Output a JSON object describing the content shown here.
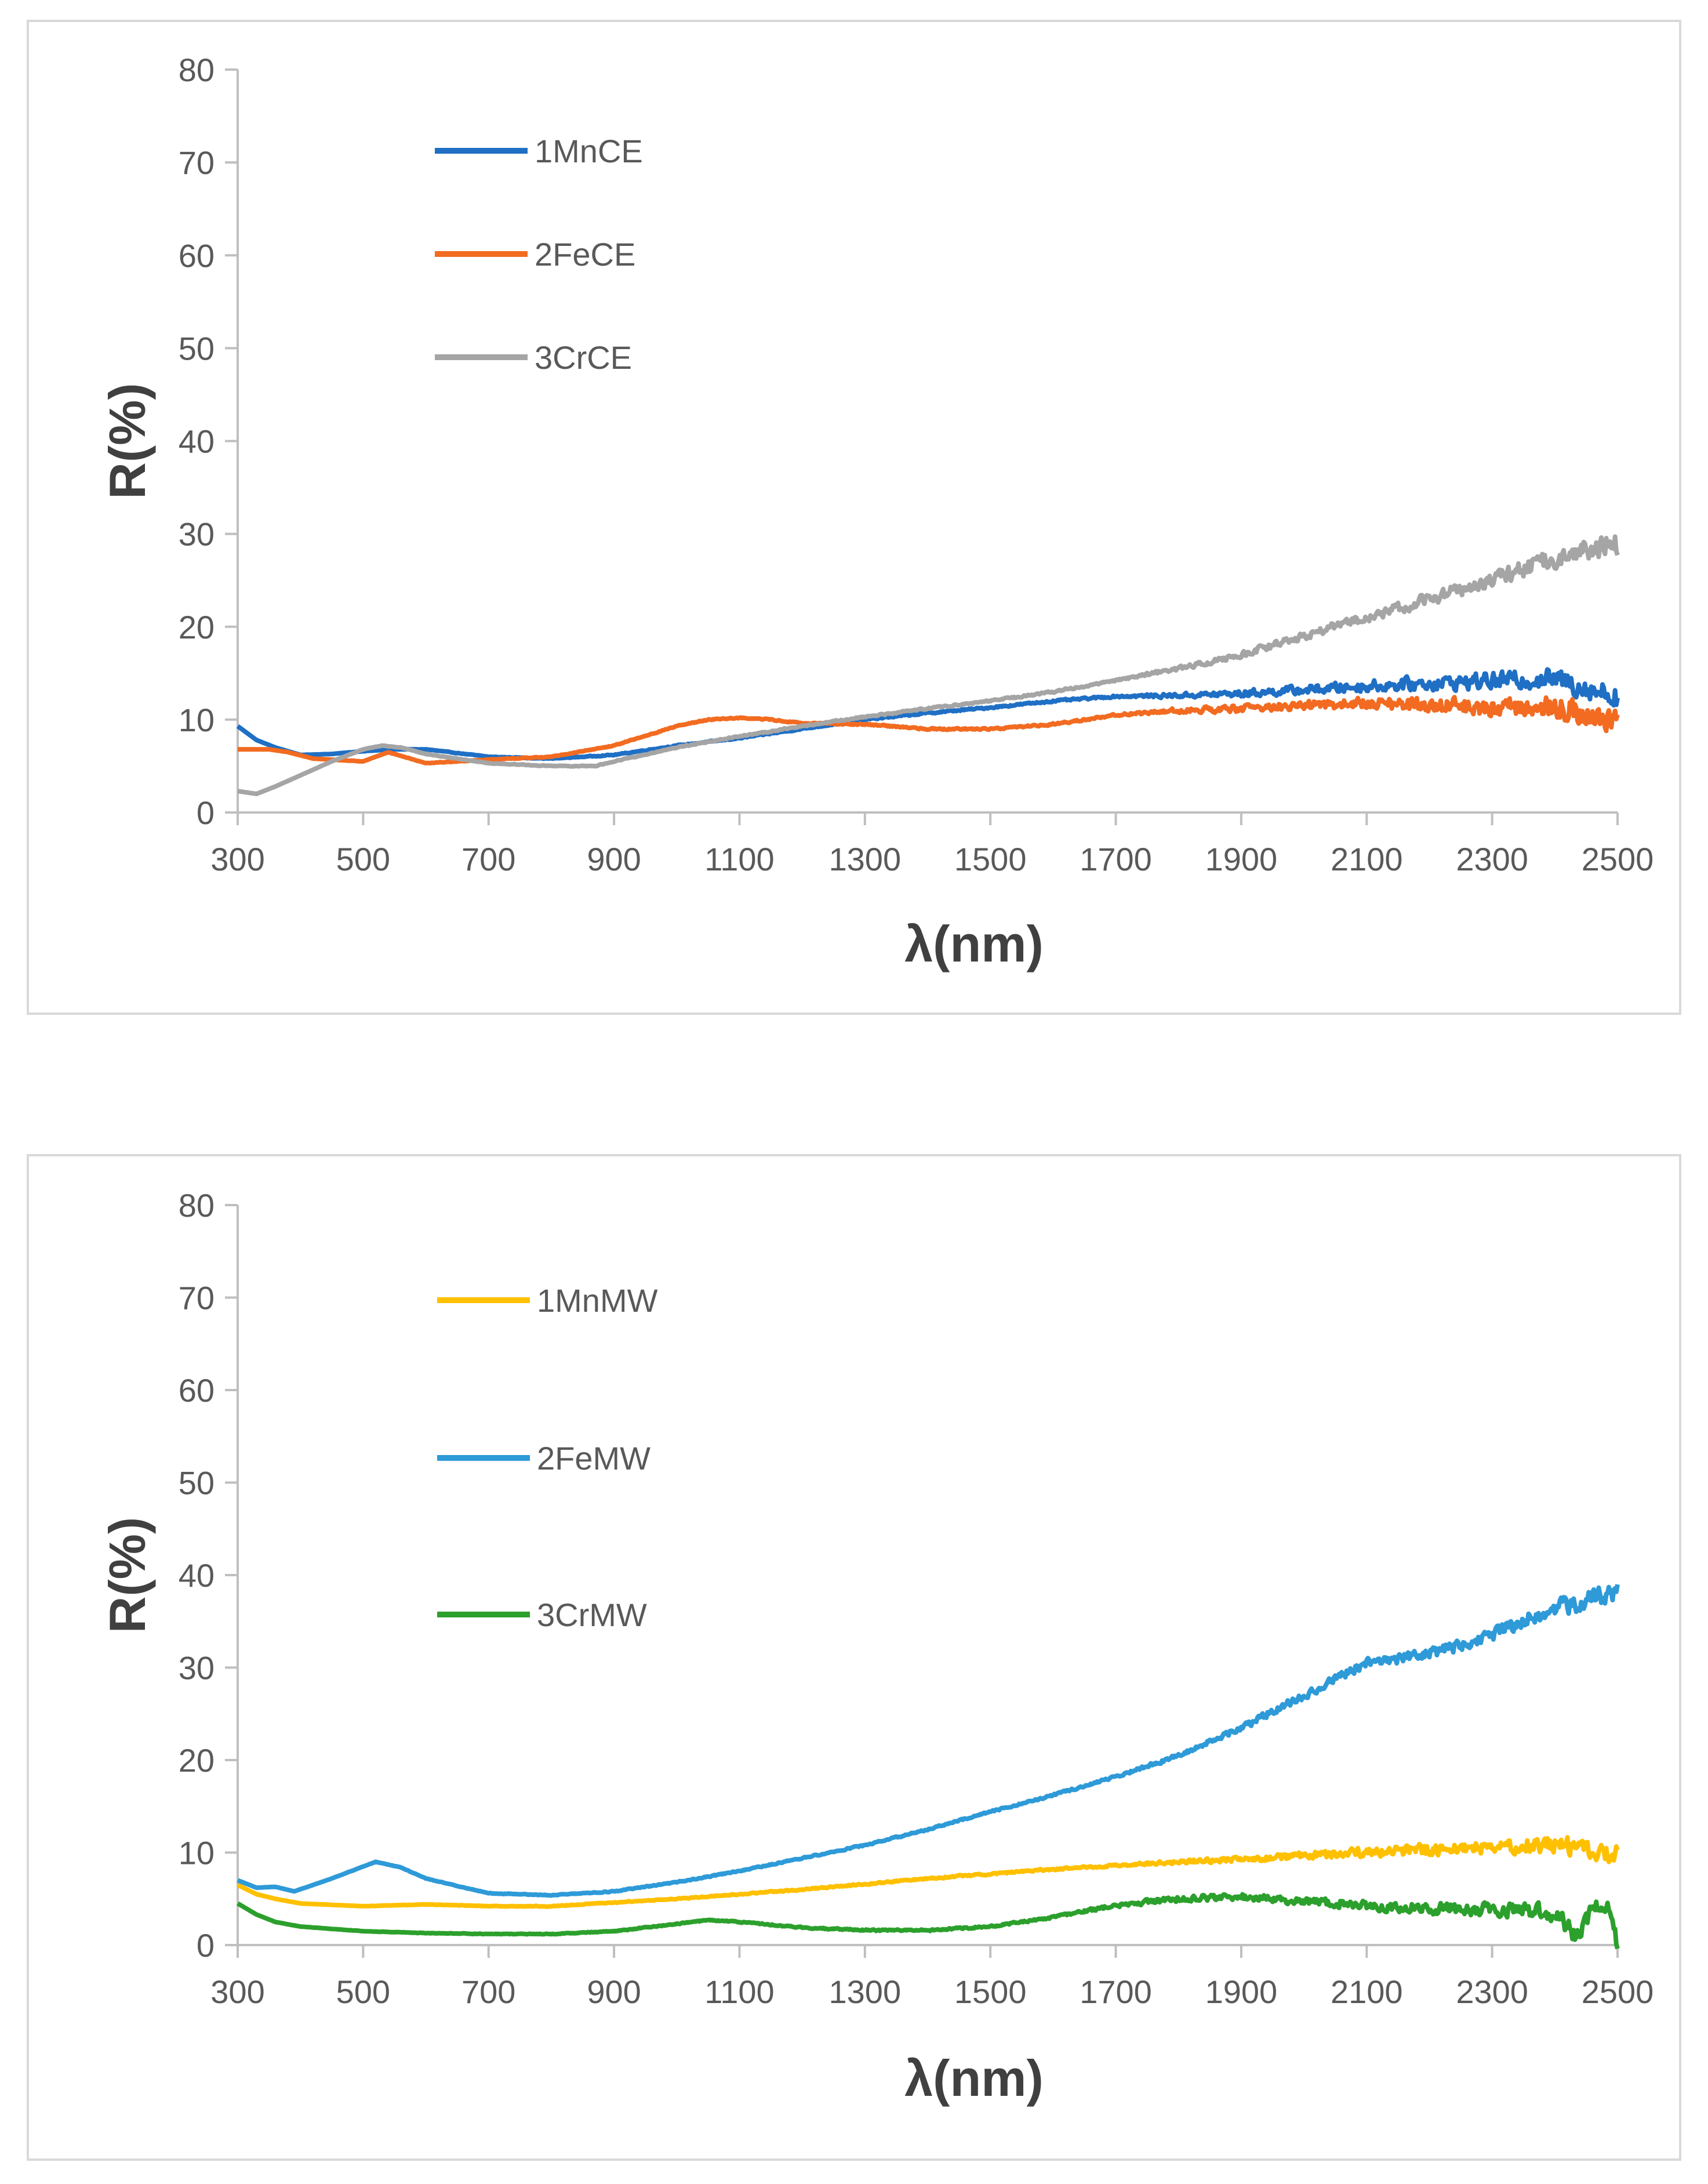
{
  "chart_data": [
    {
      "type": "line",
      "title": "",
      "xlabel": "λ(nm)",
      "ylabel": "R(%)",
      "xlim": [
        300,
        2500
      ],
      "ylim": [
        0,
        80
      ],
      "xticks": [
        300,
        500,
        700,
        900,
        1100,
        1300,
        1500,
        1700,
        1900,
        2100,
        2300,
        2500
      ],
      "yticks": [
        0,
        10,
        20,
        30,
        40,
        50,
        60,
        70,
        80
      ],
      "legend_position": "top-left",
      "series": [
        {
          "name": "1MnCE",
          "color": "#1f6fc5",
          "noise": [
            [
              300,
              0
            ],
            [
              1700,
              0.15
            ],
            [
              1900,
              0.5
            ],
            [
              2100,
              0.8
            ],
            [
              2300,
              1.2
            ],
            [
              2500,
              1.8
            ]
          ],
          "x": [
            300,
            330,
            360,
            400,
            450,
            500,
            550,
            600,
            700,
            800,
            900,
            1000,
            1100,
            1200,
            1300,
            1400,
            1500,
            1600,
            1700,
            1800,
            1900,
            2000,
            2100,
            2200,
            2300,
            2400,
            2500
          ],
          "y": [
            9.3,
            7.8,
            7.0,
            6.2,
            6.3,
            6.6,
            6.8,
            6.8,
            6.0,
            5.8,
            6.2,
            7.2,
            8.0,
            9.0,
            10.0,
            10.7,
            11.3,
            12.0,
            12.5,
            12.6,
            12.8,
            13.2,
            13.6,
            13.9,
            14.2,
            14.4,
            12.5
          ]
        },
        {
          "name": "2FeCE",
          "color": "#f26b21",
          "noise": [
            [
              300,
              0
            ],
            [
              1700,
              0.15
            ],
            [
              1900,
              0.5
            ],
            [
              2100,
              0.8
            ],
            [
              2300,
              1.3
            ],
            [
              2500,
              2.0
            ]
          ],
          "x": [
            300,
            350,
            380,
            420,
            500,
            540,
            600,
            700,
            800,
            900,
            1000,
            1050,
            1100,
            1150,
            1200,
            1300,
            1400,
            1500,
            1600,
            1700,
            1800,
            1900,
            2000,
            2100,
            2200,
            2300,
            2400,
            2500
          ],
          "y": [
            6.8,
            6.8,
            6.5,
            5.8,
            5.5,
            6.5,
            5.3,
            5.7,
            6.0,
            7.2,
            9.3,
            10.0,
            10.2,
            10.0,
            9.6,
            9.5,
            9.0,
            9.0,
            9.5,
            10.5,
            11.0,
            11.2,
            11.5,
            11.8,
            11.5,
            11.3,
            11.5,
            9.5
          ]
        },
        {
          "name": "3CrCE",
          "color": "#a5a5a5",
          "noise": [
            [
              300,
              0
            ],
            [
              1700,
              0.15
            ],
            [
              1900,
              0.45
            ],
            [
              2100,
              0.7
            ],
            [
              2300,
              1.0
            ],
            [
              2500,
              1.8
            ]
          ],
          "x": [
            300,
            330,
            360,
            400,
            450,
            500,
            530,
            560,
            600,
            700,
            800,
            870,
            900,
            1000,
            1100,
            1200,
            1300,
            1400,
            1500,
            1600,
            1700,
            1800,
            1900,
            2000,
            2100,
            2200,
            2300,
            2400,
            2500
          ],
          "y": [
            2.3,
            2.0,
            2.8,
            4.0,
            5.5,
            6.8,
            7.2,
            7.0,
            6.3,
            5.3,
            5.0,
            5.0,
            5.5,
            7.0,
            8.2,
            9.3,
            10.3,
            11.2,
            12.0,
            13.0,
            14.2,
            15.5,
            17.0,
            19.0,
            21.0,
            23.0,
            25.0,
            27.5,
            29.0
          ]
        }
      ]
    },
    {
      "type": "line",
      "title": "",
      "xlabel": "λ(nm)",
      "ylabel": "R(%)",
      "xlim": [
        300,
        2500
      ],
      "ylim": [
        0,
        80
      ],
      "xticks": [
        300,
        500,
        700,
        900,
        1100,
        1300,
        1500,
        1700,
        1900,
        2100,
        2300,
        2500
      ],
      "yticks": [
        0,
        10,
        20,
        30,
        40,
        50,
        60,
        70,
        80
      ],
      "legend_position": "top-left",
      "series": [
        {
          "name": "1MnMW",
          "color": "#ffc000",
          "noise": [
            [
              300,
              0
            ],
            [
              1700,
              0.15
            ],
            [
              1900,
              0.4
            ],
            [
              2100,
              0.7
            ],
            [
              2300,
              1.0
            ],
            [
              2500,
              1.6
            ]
          ],
          "x": [
            300,
            330,
            360,
            400,
            500,
            600,
            700,
            800,
            900,
            1000,
            1100,
            1200,
            1300,
            1400,
            1500,
            1600,
            1700,
            1800,
            1900,
            2000,
            2100,
            2200,
            2300,
            2400,
            2500
          ],
          "y": [
            6.5,
            5.5,
            5.0,
            4.5,
            4.2,
            4.4,
            4.2,
            4.2,
            4.6,
            5.0,
            5.5,
            6.0,
            6.6,
            7.2,
            7.7,
            8.2,
            8.6,
            9.0,
            9.3,
            9.6,
            10.0,
            10.3,
            10.6,
            11.0,
            9.5
          ]
        },
        {
          "name": "2FeMW",
          "color": "#2e9ad8",
          "noise": [
            [
              300,
              0
            ],
            [
              1700,
              0.15
            ],
            [
              1900,
              0.45
            ],
            [
              2100,
              0.7
            ],
            [
              2300,
              1.0
            ],
            [
              2500,
              1.6
            ]
          ],
          "x": [
            300,
            330,
            360,
            390,
            450,
            520,
            560,
            600,
            700,
            800,
            900,
            1000,
            1100,
            1200,
            1300,
            1400,
            1500,
            1600,
            1700,
            1800,
            1900,
            2000,
            2100,
            2200,
            2300,
            2400,
            2500
          ],
          "y": [
            7.0,
            6.2,
            6.3,
            5.8,
            7.2,
            9.0,
            8.4,
            7.2,
            5.6,
            5.4,
            5.8,
            6.8,
            8.0,
            9.4,
            10.8,
            12.5,
            14.4,
            16.2,
            18.2,
            20.5,
            23.5,
            27.0,
            30.5,
            31.5,
            33.5,
            36.5,
            38.0
          ]
        },
        {
          "name": "3CrMW",
          "color": "#2ca02c",
          "noise": [
            [
              300,
              0
            ],
            [
              1600,
              0.15
            ],
            [
              1800,
              0.45
            ],
            [
              2000,
              0.6
            ],
            [
              2200,
              0.8
            ],
            [
              2400,
              1.2
            ],
            [
              2500,
              1.5
            ]
          ],
          "x": [
            300,
            330,
            360,
            400,
            500,
            600,
            700,
            800,
            900,
            1000,
            1050,
            1100,
            1200,
            1300,
            1400,
            1500,
            1600,
            1700,
            1800,
            1900,
            2000,
            2100,
            2200,
            2300,
            2400,
            2440,
            2460,
            2480,
            2500
          ],
          "y": [
            4.5,
            3.3,
            2.5,
            2.0,
            1.5,
            1.3,
            1.2,
            1.2,
            1.5,
            2.3,
            2.7,
            2.5,
            1.9,
            1.6,
            1.6,
            2.0,
            3.0,
            4.3,
            5.0,
            5.2,
            4.8,
            4.3,
            4.0,
            3.8,
            3.5,
            0.5,
            4.5,
            4.5,
            0.5
          ]
        }
      ]
    }
  ]
}
